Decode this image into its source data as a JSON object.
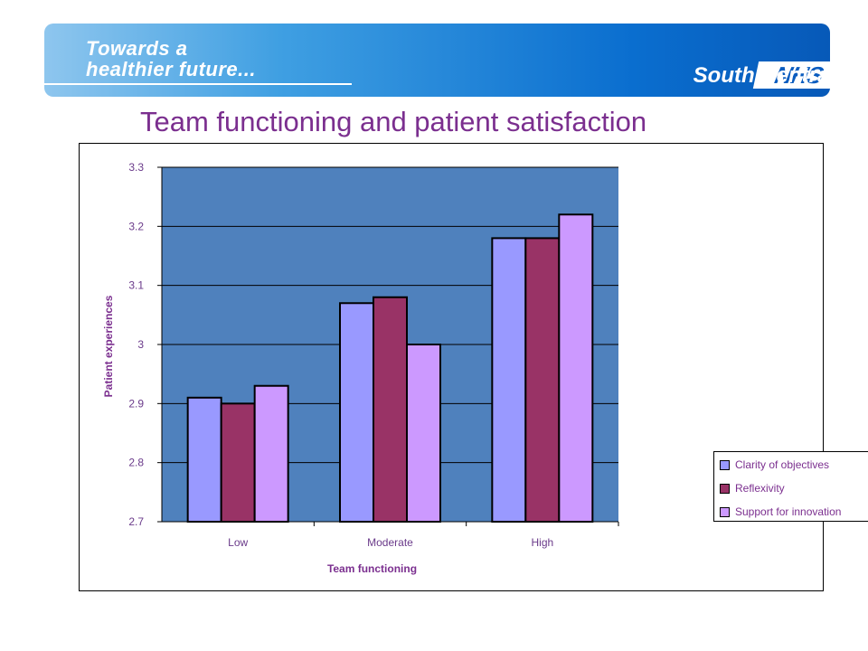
{
  "header": {
    "tagline_line1": "Towards a",
    "tagline_line2": "healthier future...",
    "logo": "NHS",
    "region": "South Central"
  },
  "page_title": "Team functioning and patient satisfaction",
  "colors": {
    "plot_bg": "#4f81bd",
    "clarity": "#9999ff",
    "reflexivity": "#993366",
    "innovation": "#cc99ff",
    "title": "#7b2f8f"
  },
  "chart_data": {
    "type": "bar",
    "categories": [
      "Low",
      "Moderate",
      "High"
    ],
    "series": [
      {
        "name": "Clarity of objectives",
        "values": [
          2.91,
          3.07,
          3.18
        ]
      },
      {
        "name": "Reflexivity",
        "values": [
          2.9,
          3.08,
          3.18
        ]
      },
      {
        "name": "Support for innovation",
        "values": [
          2.93,
          3.0,
          3.22
        ]
      }
    ],
    "xlabel": "Team functioning",
    "ylabel": "Patient experiences",
    "ylim": [
      2.7,
      3.3
    ],
    "yticks": [
      "2.7",
      "2.8",
      "2.9",
      "3",
      "3.1",
      "3.2",
      "3.3"
    ],
    "grid": true,
    "legend": "right"
  }
}
